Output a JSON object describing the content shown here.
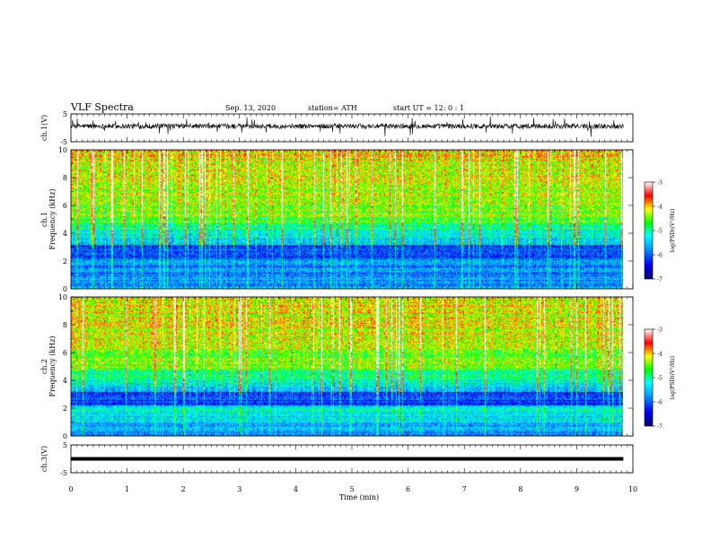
{
  "header": {
    "title": "VLF Spectra",
    "date": "Sep. 13, 2020",
    "station": "station= ATH",
    "start": "start  UT =   12: 0  : 1"
  },
  "chart_data": [
    {
      "type": "line",
      "panel": "ch1-waveform",
      "ylabel": "ch.1(V)",
      "yticks": [
        "5",
        "-5"
      ],
      "ylim": [
        -5,
        5
      ],
      "xlim": [
        0,
        10
      ]
    },
    {
      "type": "heatmap",
      "panel": "ch1-spectrogram",
      "ylabel_line1": "ch.1",
      "ylabel_line2": "Frequency  (kHz)",
      "yticks": [
        "0",
        "2",
        "4",
        "6",
        "8",
        "10"
      ],
      "ylim": [
        0,
        10
      ],
      "xlim": [
        0,
        10
      ],
      "colorbar": {
        "label": "log(PSD)(V²/Hz)",
        "ticks": [
          "-3",
          "-4",
          "-5",
          "-6",
          "-7"
        ],
        "range": [
          -7,
          -3
        ]
      }
    },
    {
      "type": "heatmap",
      "panel": "ch2-spectrogram",
      "ylabel_line1": "ch.2",
      "ylabel_line2": "Frequency  (kHz)",
      "yticks": [
        "0",
        "2",
        "4",
        "6",
        "8",
        "10"
      ],
      "ylim": [
        0,
        10
      ],
      "xlim": [
        0,
        10
      ],
      "colorbar": {
        "label": "log(PSD)(V²/Hz)",
        "ticks": [
          "-3",
          "-4",
          "-5",
          "-6",
          "-7"
        ],
        "range": [
          -7,
          -3
        ]
      }
    },
    {
      "type": "line",
      "panel": "ch3-waveform",
      "ylabel": "ch.3(V)",
      "yticks": [
        "5",
        "-5"
      ],
      "ylim": [
        -5,
        5
      ],
      "xlim": [
        0,
        10
      ],
      "level": 0
    }
  ],
  "xaxis": {
    "label": "Time  (min)",
    "ticks": [
      "0",
      "1",
      "2",
      "3",
      "4",
      "5",
      "6",
      "7",
      "8",
      "9",
      "10"
    ],
    "data_end": 9.83
  }
}
